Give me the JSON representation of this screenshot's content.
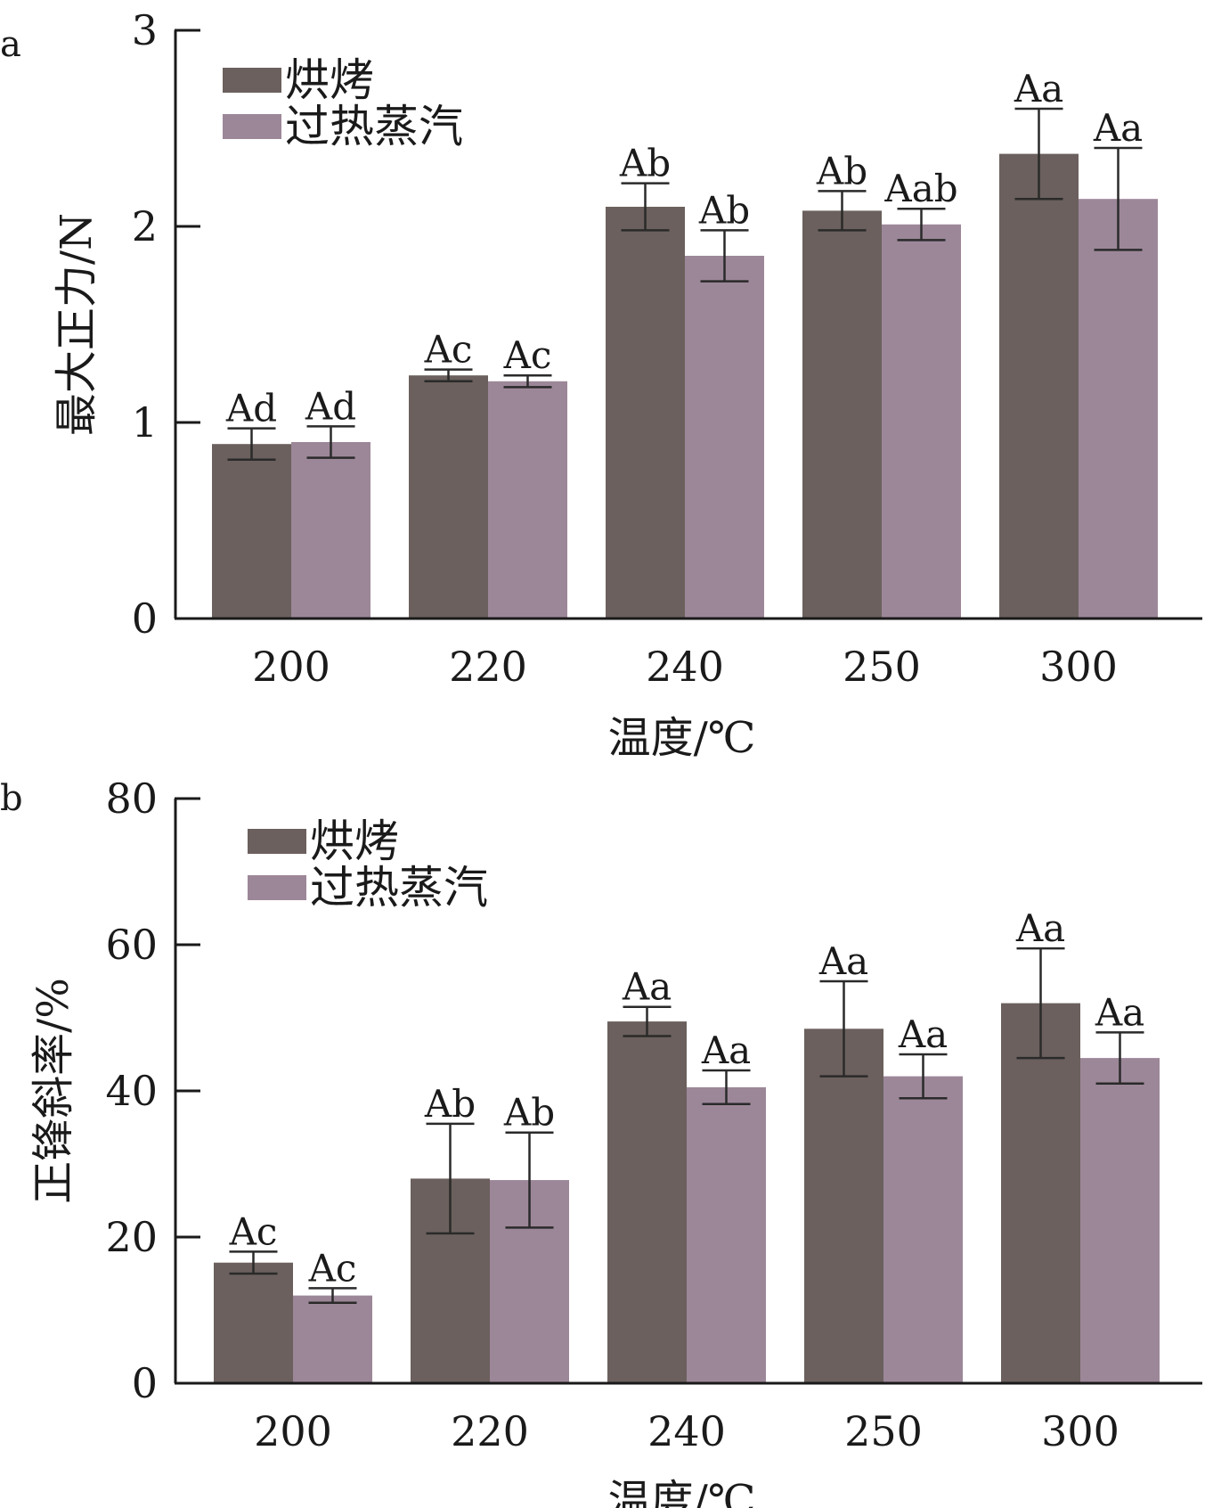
{
  "colors": {
    "series1": "#6b605d",
    "series2": "#9c8798",
    "axis": "#1a1a1a",
    "text": "#1a1a1a"
  },
  "chart_data": [
    {
      "type": "bar",
      "panel_label": "a",
      "categories": [
        "200",
        "220",
        "240",
        "250",
        "300"
      ],
      "xlabel": "温度/℃",
      "ylabel": "最大正力/N",
      "ylim": [
        0,
        3
      ],
      "yticks": [
        0,
        1,
        2,
        3
      ],
      "grid": false,
      "legend_position": "top-left",
      "series": [
        {
          "name": "烘烤",
          "values": [
            0.89,
            1.24,
            2.1,
            2.08,
            2.37
          ],
          "error": [
            0.08,
            0.03,
            0.12,
            0.1,
            0.23
          ],
          "labels": [
            "Ad",
            "Ac",
            "Ab",
            "Ab",
            "Aa"
          ]
        },
        {
          "name": "过热蒸汽",
          "values": [
            0.9,
            1.21,
            1.85,
            2.01,
            2.14
          ],
          "error": [
            0.08,
            0.03,
            0.13,
            0.08,
            0.26
          ],
          "labels": [
            "Ad",
            "Ac",
            "Ab",
            "Aab",
            "Aa"
          ]
        }
      ]
    },
    {
      "type": "bar",
      "panel_label": "b",
      "categories": [
        "200",
        "220",
        "240",
        "250",
        "300"
      ],
      "xlabel": "温度/℃",
      "ylabel": "正锋斜率/%",
      "ylim": [
        0,
        80
      ],
      "yticks": [
        0,
        20,
        40,
        60,
        80
      ],
      "grid": false,
      "legend_position": "top-left",
      "series": [
        {
          "name": "烘烤",
          "values": [
            16.5,
            28.0,
            49.5,
            48.5,
            52.0
          ],
          "error": [
            1.5,
            7.5,
            2.0,
            6.5,
            7.5
          ],
          "labels": [
            "Ac",
            "Ab",
            "Aa",
            "Aa",
            "Aa"
          ]
        },
        {
          "name": "过热蒸汽",
          "values": [
            12.0,
            27.8,
            40.5,
            42.0,
            44.5
          ],
          "error": [
            1.0,
            6.5,
            2.3,
            3.0,
            3.5
          ],
          "labels": [
            "Ac",
            "Ab",
            "Aa",
            "Aa",
            "Aa"
          ]
        }
      ]
    }
  ]
}
